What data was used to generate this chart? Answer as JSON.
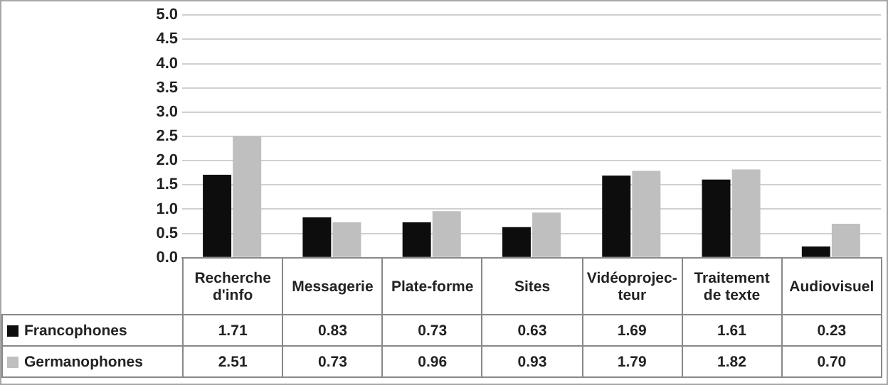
{
  "chart_data": {
    "type": "bar",
    "categories": [
      "Recherche d'info",
      "Messagerie",
      "Plate-forme",
      "Sites",
      "Vidéoprojec-teur",
      "Traitement de texte",
      "Audiovisuel"
    ],
    "series": [
      {
        "name": "Francophones",
        "color": "#0d0d0d",
        "values": [
          1.71,
          0.83,
          0.73,
          0.63,
          1.69,
          1.61,
          0.23
        ],
        "value_labels": [
          "1.71",
          "0.83",
          "0.73",
          "0.63",
          "1.69",
          "1.61",
          "0.23"
        ]
      },
      {
        "name": "Germanophones",
        "color": "#bfbfbf",
        "values": [
          2.51,
          0.73,
          0.96,
          0.93,
          1.79,
          1.82,
          0.7
        ],
        "value_labels": [
          "2.51",
          "0.73",
          "0.96",
          "0.93",
          "1.79",
          "1.82",
          "0.70"
        ]
      }
    ],
    "ylim": [
      0,
      5
    ],
    "yticks": [
      {
        "value": 0,
        "label": "0.0"
      },
      {
        "value": 0.5,
        "label": "0.5"
      },
      {
        "value": 1,
        "label": "1.0"
      },
      {
        "value": 1.5,
        "label": "1.5"
      },
      {
        "value": 2,
        "label": "2.0"
      },
      {
        "value": 2.5,
        "label": "2.5"
      },
      {
        "value": 3,
        "label": "3.0"
      },
      {
        "value": 3.5,
        "label": "3.5"
      },
      {
        "value": 4,
        "label": "4.0"
      },
      {
        "value": 4.5,
        "label": "4.5"
      },
      {
        "value": 5,
        "label": "5.0"
      }
    ],
    "grid": "y",
    "legend": "bottom"
  }
}
